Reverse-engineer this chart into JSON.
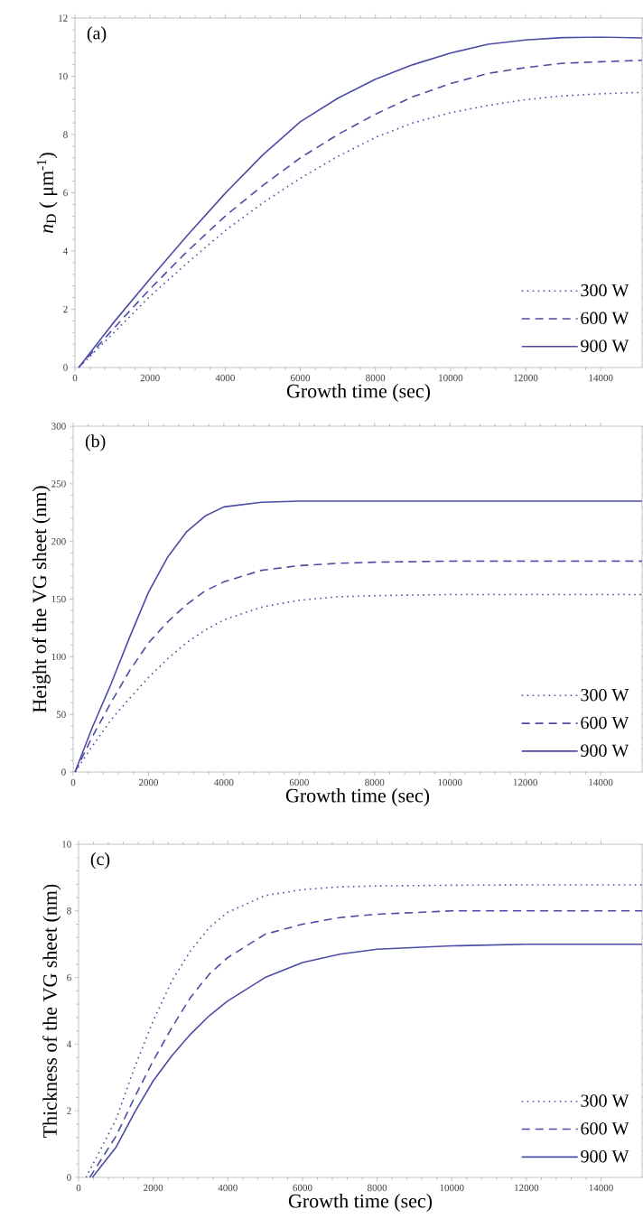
{
  "chart_data": [
    {
      "type": "line",
      "xlabel": "Growth time (sec)",
      "ylabel": "*n*$_{D}$ ( μm$^{-1}$)",
      "annotations": [
        "(a)"
      ],
      "xlim": [
        0,
        15100
      ],
      "ylim": [
        0,
        12
      ],
      "xticks": [
        0,
        2000,
        4000,
        6000,
        8000,
        10000,
        12000,
        14000
      ],
      "yticks": [
        0,
        2,
        4,
        6,
        8,
        10,
        12
      ],
      "legend": "bottom right",
      "x": [
        100,
        1000,
        2000,
        3000,
        4000,
        5000,
        6000,
        7000,
        8000,
        9000,
        10000,
        11000,
        12000,
        13000,
        14000,
        15100
      ],
      "series": [
        {
          "name": "300 W",
          "color": "#4c4ca6",
          "line_style": "dotted",
          "values": [
            0,
            1.15,
            2.45,
            3.6,
            4.7,
            5.65,
            6.5,
            7.25,
            7.9,
            8.4,
            8.75,
            9.0,
            9.2,
            9.33,
            9.4,
            9.45
          ]
        },
        {
          "name": "600 W",
          "color": "#4c4ca6",
          "line_style": "dashed",
          "values": [
            0,
            1.3,
            2.7,
            4.0,
            5.2,
            6.25,
            7.2,
            8.0,
            8.7,
            9.3,
            9.75,
            10.1,
            10.3,
            10.45,
            10.5,
            10.55
          ]
        },
        {
          "name": "900 W",
          "color": "#4c4ca6",
          "line_style": "solid",
          "values": [
            0,
            1.5,
            3.05,
            4.55,
            5.98,
            7.3,
            8.44,
            9.25,
            9.9,
            10.4,
            10.8,
            11.1,
            11.25,
            11.33,
            11.35,
            11.32
          ]
        }
      ]
    },
    {
      "type": "line",
      "xlabel": "Growth time (sec)",
      "ylabel": "Height of the VG sheet (nm)",
      "annotations": [
        "(b)"
      ],
      "xlim": [
        0,
        15100
      ],
      "ylim": [
        0,
        300
      ],
      "xticks": [
        0,
        2000,
        4000,
        6000,
        8000,
        10000,
        12000,
        14000
      ],
      "yticks": [
        0,
        50,
        100,
        150,
        200,
        250,
        300
      ],
      "legend": "bottom right",
      "x": [
        50,
        500,
        1000,
        1500,
        2000,
        2500,
        3000,
        3500,
        4000,
        5000,
        6000,
        7000,
        8000,
        10000,
        12000,
        15100
      ],
      "series": [
        {
          "name": "300 W",
          "color": "#4c4ca6",
          "line_style": "dotted",
          "values": [
            0,
            22,
            45,
            64,
            82,
            98,
            112,
            123,
            132,
            143,
            149,
            152,
            153,
            154,
            154,
            154
          ]
        },
        {
          "name": "600 W",
          "color": "#4c4ca6",
          "line_style": "dashed",
          "values": [
            0,
            30,
            60,
            88,
            112,
            130,
            145,
            157,
            165,
            175,
            179,
            181,
            182,
            183,
            183,
            183
          ]
        },
        {
          "name": "900 W",
          "color": "#4c4ca6",
          "line_style": "solid",
          "values": [
            0,
            38,
            76,
            117,
            156,
            186,
            208,
            222,
            230,
            234,
            235,
            235,
            235,
            235,
            235,
            235
          ]
        }
      ]
    },
    {
      "type": "line",
      "xlabel": "Growth time (sec)",
      "ylabel": "Thickness of the VG sheet (nm)",
      "annotations": [
        "(c)"
      ],
      "xlim": [
        0,
        15100
      ],
      "ylim": [
        0,
        10
      ],
      "xticks": [
        0,
        2000,
        4000,
        6000,
        8000,
        10000,
        12000,
        14000
      ],
      "yticks": [
        0,
        2,
        4,
        6,
        8,
        10
      ],
      "legend": "bottom right",
      "series": [
        {
          "name": "300 W",
          "color": "#4c4ca6",
          "line_style": "dotted",
          "x": [
            200,
            1000,
            1500,
            2000,
            2500,
            3000,
            3500,
            4000,
            5000,
            6000,
            7000,
            8000,
            10000,
            12000,
            15100
          ],
          "values": [
            0,
            1.73,
            3.3,
            4.7,
            5.9,
            6.8,
            7.5,
            7.96,
            8.46,
            8.64,
            8.72,
            8.75,
            8.77,
            8.78,
            8.78
          ]
        },
        {
          "name": "600 W",
          "color": "#4c4ca6",
          "line_style": "dashed",
          "x": [
            300,
            1000,
            1500,
            2000,
            2500,
            3000,
            3500,
            4000,
            5000,
            6000,
            7000,
            8000,
            10000,
            12000,
            15100
          ],
          "values": [
            0,
            1.23,
            2.4,
            3.5,
            4.5,
            5.4,
            6.1,
            6.6,
            7.3,
            7.6,
            7.8,
            7.9,
            8.0,
            8.0,
            8.0
          ]
        },
        {
          "name": "900 W",
          "color": "#4c4ca6",
          "line_style": "solid",
          "x": [
            370,
            1000,
            1500,
            2000,
            2500,
            3000,
            3500,
            4000,
            5000,
            6000,
            7000,
            8000,
            10000,
            12000,
            15100
          ],
          "values": [
            0,
            0.9,
            1.95,
            2.9,
            3.65,
            4.3,
            4.85,
            5.3,
            6.0,
            6.45,
            6.7,
            6.85,
            6.95,
            7.0,
            7.0
          ]
        }
      ]
    }
  ]
}
